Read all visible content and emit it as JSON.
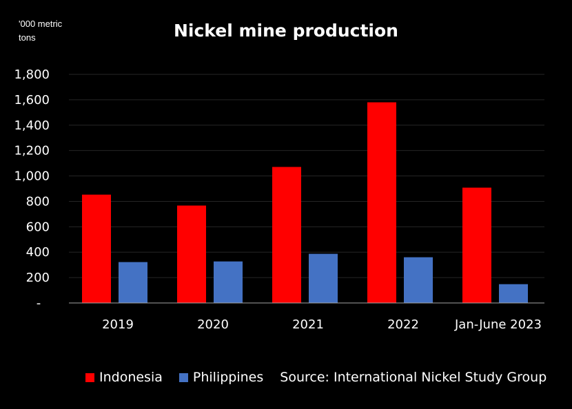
{
  "chart_data": {
    "type": "bar",
    "title": "Nickel mine production",
    "ylabel": "'000 metric tons",
    "xlabel": "",
    "categories": [
      "2019",
      "2020",
      "2021",
      "2022",
      "Jan-June 2023"
    ],
    "series": [
      {
        "name": "Indonesia",
        "color": "#ff0000",
        "values": [
          853,
          767,
          1071,
          1580,
          908
        ]
      },
      {
        "name": "Philippines",
        "color": "#4472c4",
        "values": [
          322,
          327,
          387,
          360,
          148
        ]
      }
    ],
    "ylim": [
      0,
      1800
    ],
    "yticks": [
      0,
      200,
      400,
      600,
      800,
      1000,
      1200,
      1400,
      1600,
      1800
    ],
    "ytick_labels": [
      "-",
      "200",
      "400",
      "600",
      "800",
      "1,000",
      "1,200",
      "1,400",
      "1,600",
      "1,800"
    ],
    "grid": true,
    "legend_position": "bottom-left",
    "source": "Source: International Nickel Study Group"
  }
}
